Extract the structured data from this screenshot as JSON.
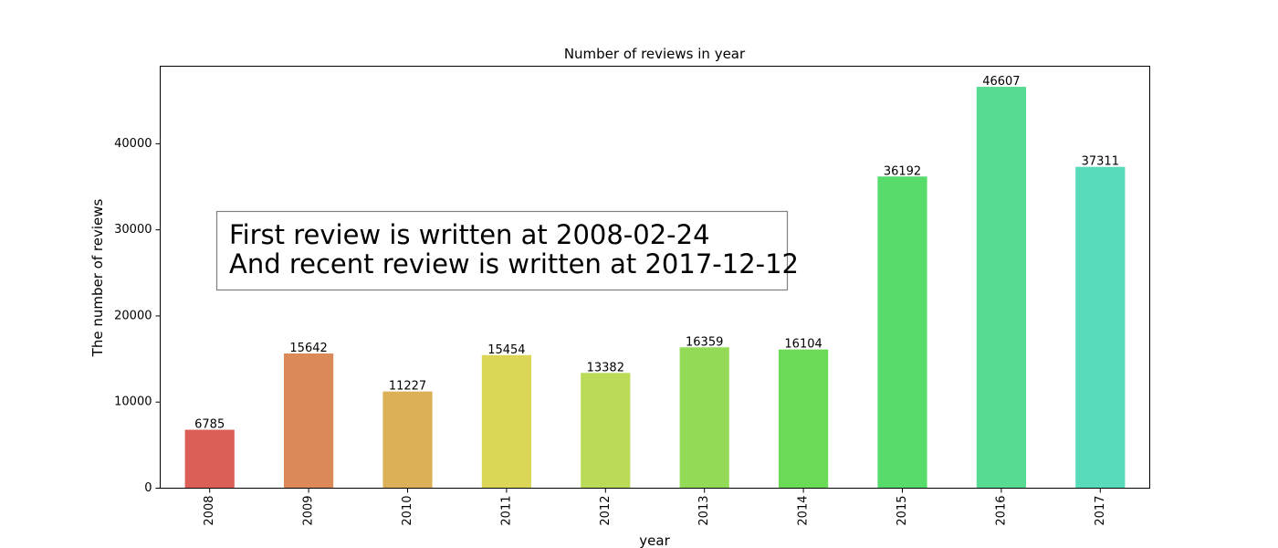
{
  "chart_data": {
    "type": "bar",
    "title": "Number of reviews in year",
    "xlabel": "year",
    "ylabel": "The number of reviews",
    "categories": [
      "2008",
      "2009",
      "2010",
      "2011",
      "2012",
      "2013",
      "2014",
      "2015",
      "2016",
      "2017"
    ],
    "values": [
      6785,
      15642,
      11227,
      15454,
      13382,
      16359,
      16104,
      36192,
      46607,
      37311
    ],
    "data_labels": [
      "6785",
      "15642",
      "11227",
      "15454",
      "13382",
      "16359",
      "16104",
      "36192",
      "46607",
      "37311"
    ],
    "colors": [
      "#db5f57",
      "#db8957",
      "#dbb057",
      "#dbd657",
      "#badb57",
      "#93db57",
      "#6bdb57",
      "#57db6b",
      "#57db93",
      "#57dbb9"
    ],
    "ylim": [
      0,
      49000
    ],
    "yticks": [
      0,
      10000,
      20000,
      30000,
      40000
    ],
    "ytick_labels": [
      "0",
      "10000",
      "20000",
      "30000",
      "40000"
    ],
    "grid": false,
    "annotation": {
      "lines": [
        "First review is written at 2008-02-24",
        "And recent review is written at 2017-12-12"
      ]
    }
  }
}
